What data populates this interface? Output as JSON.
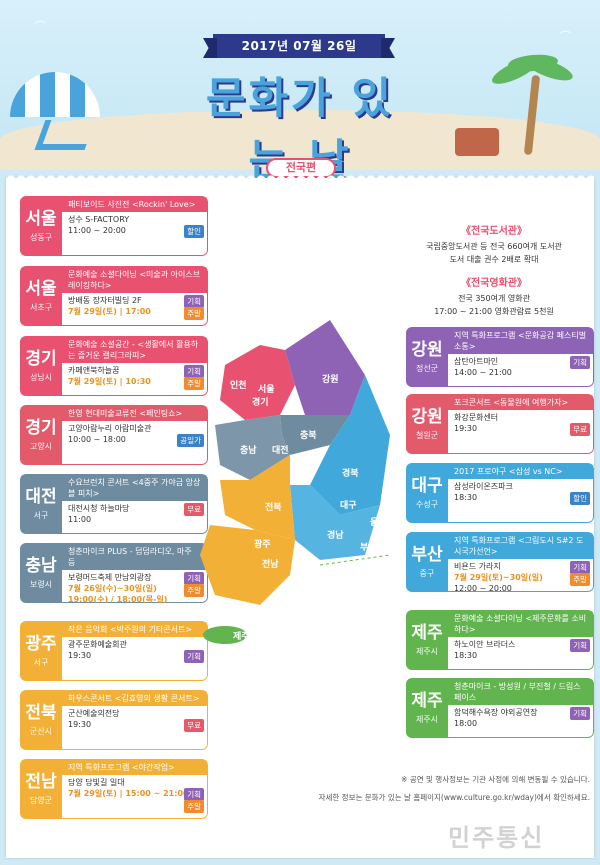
{
  "header": {
    "date": "2017년 07월 26일",
    "title": "문화가 있는 날",
    "subtitle": "전국편"
  },
  "colors": {
    "pink": "#e8516f",
    "slate": "#6e8ba0",
    "yellow": "#f2b136",
    "purple": "#8e63b5",
    "red": "#e35a6b",
    "cyan": "#41a8dc",
    "green": "#62b44e"
  },
  "info": {
    "library_title": "《전국도서관》",
    "library_lines": [
      "국립중앙도서관 등 전국 660여개 도서관",
      "도서 대출 권수 2배로 확대"
    ],
    "cinema_title": "《전국영화관》",
    "cinema_lines": [
      "전국 350여개 영화관",
      "17:00 ~ 21:00 영화관람료 5천원"
    ]
  },
  "left_cards": [
    {
      "city": "서울",
      "sub": "성동구",
      "head": "패티보이드 사진전 <Rockin' Love>",
      "lines": [
        "성수 S-FACTORY",
        "11:00 ~ 20:00"
      ],
      "badge": "할인"
    },
    {
      "city": "서울",
      "sub": "서초구",
      "head": "문화예술 소셜다이닝 <미술과 아이스브레이킹하다>",
      "lines": [
        "방배동 장자터빌딩 2F",
        "7월 29일(토) | 17:00"
      ],
      "badge": "기획",
      "badge2": "주말"
    },
    {
      "city": "경기",
      "sub": "성남시",
      "head": "문화예술 소셜공간 - <생활에서 활용하는 즐거운 캘리그라피>",
      "lines": [
        "카페앤북하늘꿈",
        "7월 29일(토) | 10:30"
      ],
      "badge": "기획",
      "badge2": "주말"
    },
    {
      "city": "경기",
      "sub": "고양시",
      "head": "한영 현대미술교류전 <페인팅쇼>",
      "lines": [
        "고양아람누리 아람미술관",
        "10:00 ~ 18:00"
      ],
      "badge": "공일가"
    },
    {
      "city": "대전",
      "sub": "서구",
      "head": "수요브런치 콘서트 <4중주 가야금 앙상블 피치>",
      "lines": [
        "대전시청 하늘마당",
        "11:00"
      ],
      "badge": "무료"
    },
    {
      "city": "충남",
      "sub": "보령시",
      "head": "청춘마이크 PLUS - 덤덤라디오, 마주 등",
      "lines": [
        "보령머드축제 만남의광장",
        "7월 26일(수)~30일(일)",
        "19:00(수) / 18:00(목-일)"
      ],
      "badge": "기획",
      "badge2": "주말"
    },
    {
      "city": "광주",
      "sub": "서구",
      "head": "작은 음악회 <박주원의 기타콘서트>",
      "lines": [
        "광주문화예술회관",
        "19:30"
      ],
      "badge": "기획"
    },
    {
      "city": "전북",
      "sub": "군산시",
      "head": "하우스콘서트 <김효영의 생황 콘서트>",
      "lines": [
        "군산예술의전당",
        "19:30"
      ],
      "badge": "무료"
    },
    {
      "city": "전남",
      "sub": "담양군",
      "head": "지역 특화프로그램 <야간작업>",
      "lines": [
        "담양 담빛길 일대",
        "7월 29일(토) | 15:00 ~ 21:00"
      ],
      "badge": "기획",
      "badge2": "주말"
    }
  ],
  "right_cards": [
    {
      "city": "강원",
      "sub": "정선군",
      "head": "지역 특화프로그램 <문화공감 페스티벌 소통>",
      "lines": [
        "삼탄아트마인",
        "14:00 ~ 21:00"
      ],
      "badge": "기획"
    },
    {
      "city": "강원",
      "sub": "철원군",
      "head": "포크콘서트 <동물원에 여행가자>",
      "lines": [
        "화강문화센터",
        "19:30"
      ],
      "badge": "무료"
    },
    {
      "city": "대구",
      "sub": "수성구",
      "head": "2017 프로야구 <삼성 vs NC>",
      "lines": [
        "삼성라이온즈파크",
        "18:30"
      ],
      "badge": "할인"
    },
    {
      "city": "부산",
      "sub": "중구",
      "head": "지역 특화프로그램 <그림도시 S#2 도시국가선언>",
      "lines": [
        "비욘드 가라지",
        "7월 29일(토)~30일(일)",
        "12:00 ~ 20:00"
      ],
      "badge": "기획",
      "badge2": "주말"
    },
    {
      "city": "제주",
      "sub": "제주시",
      "head": "문화예술 소셜다이닝 <제주문화를 소비하다>",
      "lines": [
        "하노이안 브라더스",
        "18:30"
      ],
      "badge": "기획"
    },
    {
      "city": "제주",
      "sub": "제주시",
      "head": "청춘마이크 - 방성원 / 부진철 / 드림스페이스",
      "lines": [
        "함덕해수욕장 야외공연장",
        "18:00"
      ],
      "badge": "기획"
    }
  ],
  "map_labels": [
    "인천",
    "서울",
    "경기",
    "강원",
    "충북",
    "충남",
    "대전",
    "경북",
    "대구",
    "울산",
    "경남",
    "부산",
    "전북",
    "광주",
    "전남",
    "제주"
  ],
  "footer": {
    "note": "※ 공연 및 행사정보는 기관 사정에 의해 변동될 수 있습니다.",
    "more": "자세한 정보는 문화가 있는 날 홈페이지(www.culture.go.kr/wday)에서 확인하세요.",
    "watermark": "민주통신"
  }
}
